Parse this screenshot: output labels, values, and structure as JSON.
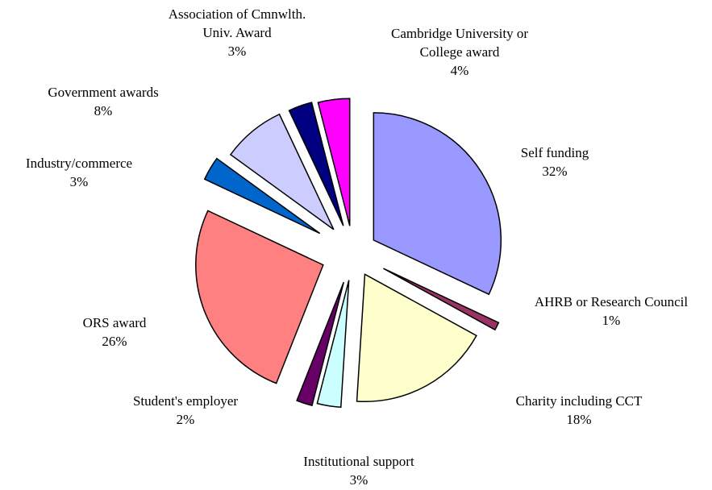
{
  "chart_data": {
    "type": "pie",
    "categories": [
      "Self funding",
      "AHRB or Research Council",
      "Charity including CCT",
      "Institutional support",
      "Student's employer",
      "ORS award",
      "Industry/commerce",
      "Government awards",
      "Association of Cmnwlth. Univ. Award",
      "Cambridge University or College award"
    ],
    "values": [
      32,
      1,
      18,
      3,
      2,
      26,
      3,
      8,
      3,
      4
    ],
    "value_labels": [
      "32%",
      "1%",
      "18%",
      "3%",
      "2%",
      "26%",
      "3%",
      "8%",
      "3%",
      "4%"
    ],
    "colors": [
      "#9999ff",
      "#993366",
      "#ffffcc",
      "#ccffff",
      "#660066",
      "#ff8080",
      "#0066cc",
      "#ccccff",
      "#000080",
      "#ff00ff"
    ]
  }
}
